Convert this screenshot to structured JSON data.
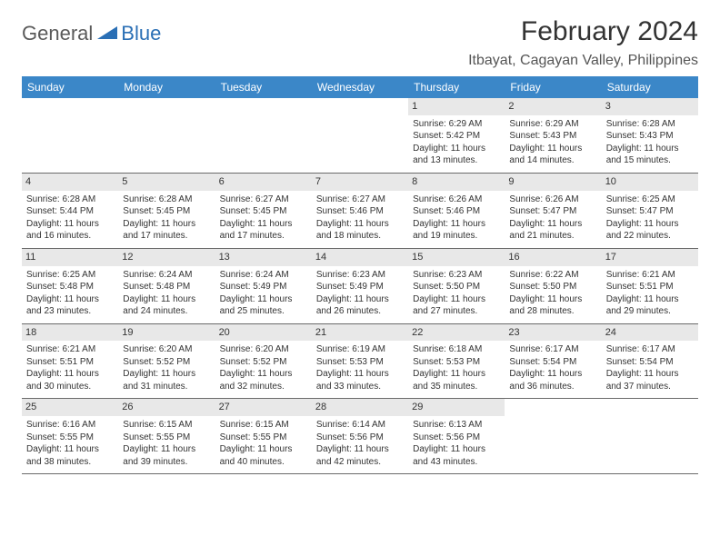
{
  "logo": {
    "text1": "General",
    "text2": "Blue",
    "color_text": "#5a5a5a",
    "color_blue": "#2a6fb5"
  },
  "title": "February 2024",
  "location": "Itbayat, Cagayan Valley, Philippines",
  "header_bg": "#3b87c8",
  "date_bg": "#e8e8e8",
  "day_names": [
    "Sunday",
    "Monday",
    "Tuesday",
    "Wednesday",
    "Thursday",
    "Friday",
    "Saturday"
  ],
  "weeks": [
    [
      {
        "empty": true
      },
      {
        "empty": true
      },
      {
        "empty": true
      },
      {
        "empty": true
      },
      {
        "date": "1",
        "sunrise": "Sunrise: 6:29 AM",
        "sunset": "Sunset: 5:42 PM",
        "daylight": "Daylight: 11 hours and 13 minutes."
      },
      {
        "date": "2",
        "sunrise": "Sunrise: 6:29 AM",
        "sunset": "Sunset: 5:43 PM",
        "daylight": "Daylight: 11 hours and 14 minutes."
      },
      {
        "date": "3",
        "sunrise": "Sunrise: 6:28 AM",
        "sunset": "Sunset: 5:43 PM",
        "daylight": "Daylight: 11 hours and 15 minutes."
      }
    ],
    [
      {
        "date": "4",
        "sunrise": "Sunrise: 6:28 AM",
        "sunset": "Sunset: 5:44 PM",
        "daylight": "Daylight: 11 hours and 16 minutes."
      },
      {
        "date": "5",
        "sunrise": "Sunrise: 6:28 AM",
        "sunset": "Sunset: 5:45 PM",
        "daylight": "Daylight: 11 hours and 17 minutes."
      },
      {
        "date": "6",
        "sunrise": "Sunrise: 6:27 AM",
        "sunset": "Sunset: 5:45 PM",
        "daylight": "Daylight: 11 hours and 17 minutes."
      },
      {
        "date": "7",
        "sunrise": "Sunrise: 6:27 AM",
        "sunset": "Sunset: 5:46 PM",
        "daylight": "Daylight: 11 hours and 18 minutes."
      },
      {
        "date": "8",
        "sunrise": "Sunrise: 6:26 AM",
        "sunset": "Sunset: 5:46 PM",
        "daylight": "Daylight: 11 hours and 19 minutes."
      },
      {
        "date": "9",
        "sunrise": "Sunrise: 6:26 AM",
        "sunset": "Sunset: 5:47 PM",
        "daylight": "Daylight: 11 hours and 21 minutes."
      },
      {
        "date": "10",
        "sunrise": "Sunrise: 6:25 AM",
        "sunset": "Sunset: 5:47 PM",
        "daylight": "Daylight: 11 hours and 22 minutes."
      }
    ],
    [
      {
        "date": "11",
        "sunrise": "Sunrise: 6:25 AM",
        "sunset": "Sunset: 5:48 PM",
        "daylight": "Daylight: 11 hours and 23 minutes."
      },
      {
        "date": "12",
        "sunrise": "Sunrise: 6:24 AM",
        "sunset": "Sunset: 5:48 PM",
        "daylight": "Daylight: 11 hours and 24 minutes."
      },
      {
        "date": "13",
        "sunrise": "Sunrise: 6:24 AM",
        "sunset": "Sunset: 5:49 PM",
        "daylight": "Daylight: 11 hours and 25 minutes."
      },
      {
        "date": "14",
        "sunrise": "Sunrise: 6:23 AM",
        "sunset": "Sunset: 5:49 PM",
        "daylight": "Daylight: 11 hours and 26 minutes."
      },
      {
        "date": "15",
        "sunrise": "Sunrise: 6:23 AM",
        "sunset": "Sunset: 5:50 PM",
        "daylight": "Daylight: 11 hours and 27 minutes."
      },
      {
        "date": "16",
        "sunrise": "Sunrise: 6:22 AM",
        "sunset": "Sunset: 5:50 PM",
        "daylight": "Daylight: 11 hours and 28 minutes."
      },
      {
        "date": "17",
        "sunrise": "Sunrise: 6:21 AM",
        "sunset": "Sunset: 5:51 PM",
        "daylight": "Daylight: 11 hours and 29 minutes."
      }
    ],
    [
      {
        "date": "18",
        "sunrise": "Sunrise: 6:21 AM",
        "sunset": "Sunset: 5:51 PM",
        "daylight": "Daylight: 11 hours and 30 minutes."
      },
      {
        "date": "19",
        "sunrise": "Sunrise: 6:20 AM",
        "sunset": "Sunset: 5:52 PM",
        "daylight": "Daylight: 11 hours and 31 minutes."
      },
      {
        "date": "20",
        "sunrise": "Sunrise: 6:20 AM",
        "sunset": "Sunset: 5:52 PM",
        "daylight": "Daylight: 11 hours and 32 minutes."
      },
      {
        "date": "21",
        "sunrise": "Sunrise: 6:19 AM",
        "sunset": "Sunset: 5:53 PM",
        "daylight": "Daylight: 11 hours and 33 minutes."
      },
      {
        "date": "22",
        "sunrise": "Sunrise: 6:18 AM",
        "sunset": "Sunset: 5:53 PM",
        "daylight": "Daylight: 11 hours and 35 minutes."
      },
      {
        "date": "23",
        "sunrise": "Sunrise: 6:17 AM",
        "sunset": "Sunset: 5:54 PM",
        "daylight": "Daylight: 11 hours and 36 minutes."
      },
      {
        "date": "24",
        "sunrise": "Sunrise: 6:17 AM",
        "sunset": "Sunset: 5:54 PM",
        "daylight": "Daylight: 11 hours and 37 minutes."
      }
    ],
    [
      {
        "date": "25",
        "sunrise": "Sunrise: 6:16 AM",
        "sunset": "Sunset: 5:55 PM",
        "daylight": "Daylight: 11 hours and 38 minutes."
      },
      {
        "date": "26",
        "sunrise": "Sunrise: 6:15 AM",
        "sunset": "Sunset: 5:55 PM",
        "daylight": "Daylight: 11 hours and 39 minutes."
      },
      {
        "date": "27",
        "sunrise": "Sunrise: 6:15 AM",
        "sunset": "Sunset: 5:55 PM",
        "daylight": "Daylight: 11 hours and 40 minutes."
      },
      {
        "date": "28",
        "sunrise": "Sunrise: 6:14 AM",
        "sunset": "Sunset: 5:56 PM",
        "daylight": "Daylight: 11 hours and 42 minutes."
      },
      {
        "date": "29",
        "sunrise": "Sunrise: 6:13 AM",
        "sunset": "Sunset: 5:56 PM",
        "daylight": "Daylight: 11 hours and 43 minutes."
      },
      {
        "empty": true
      },
      {
        "empty": true
      }
    ]
  ]
}
